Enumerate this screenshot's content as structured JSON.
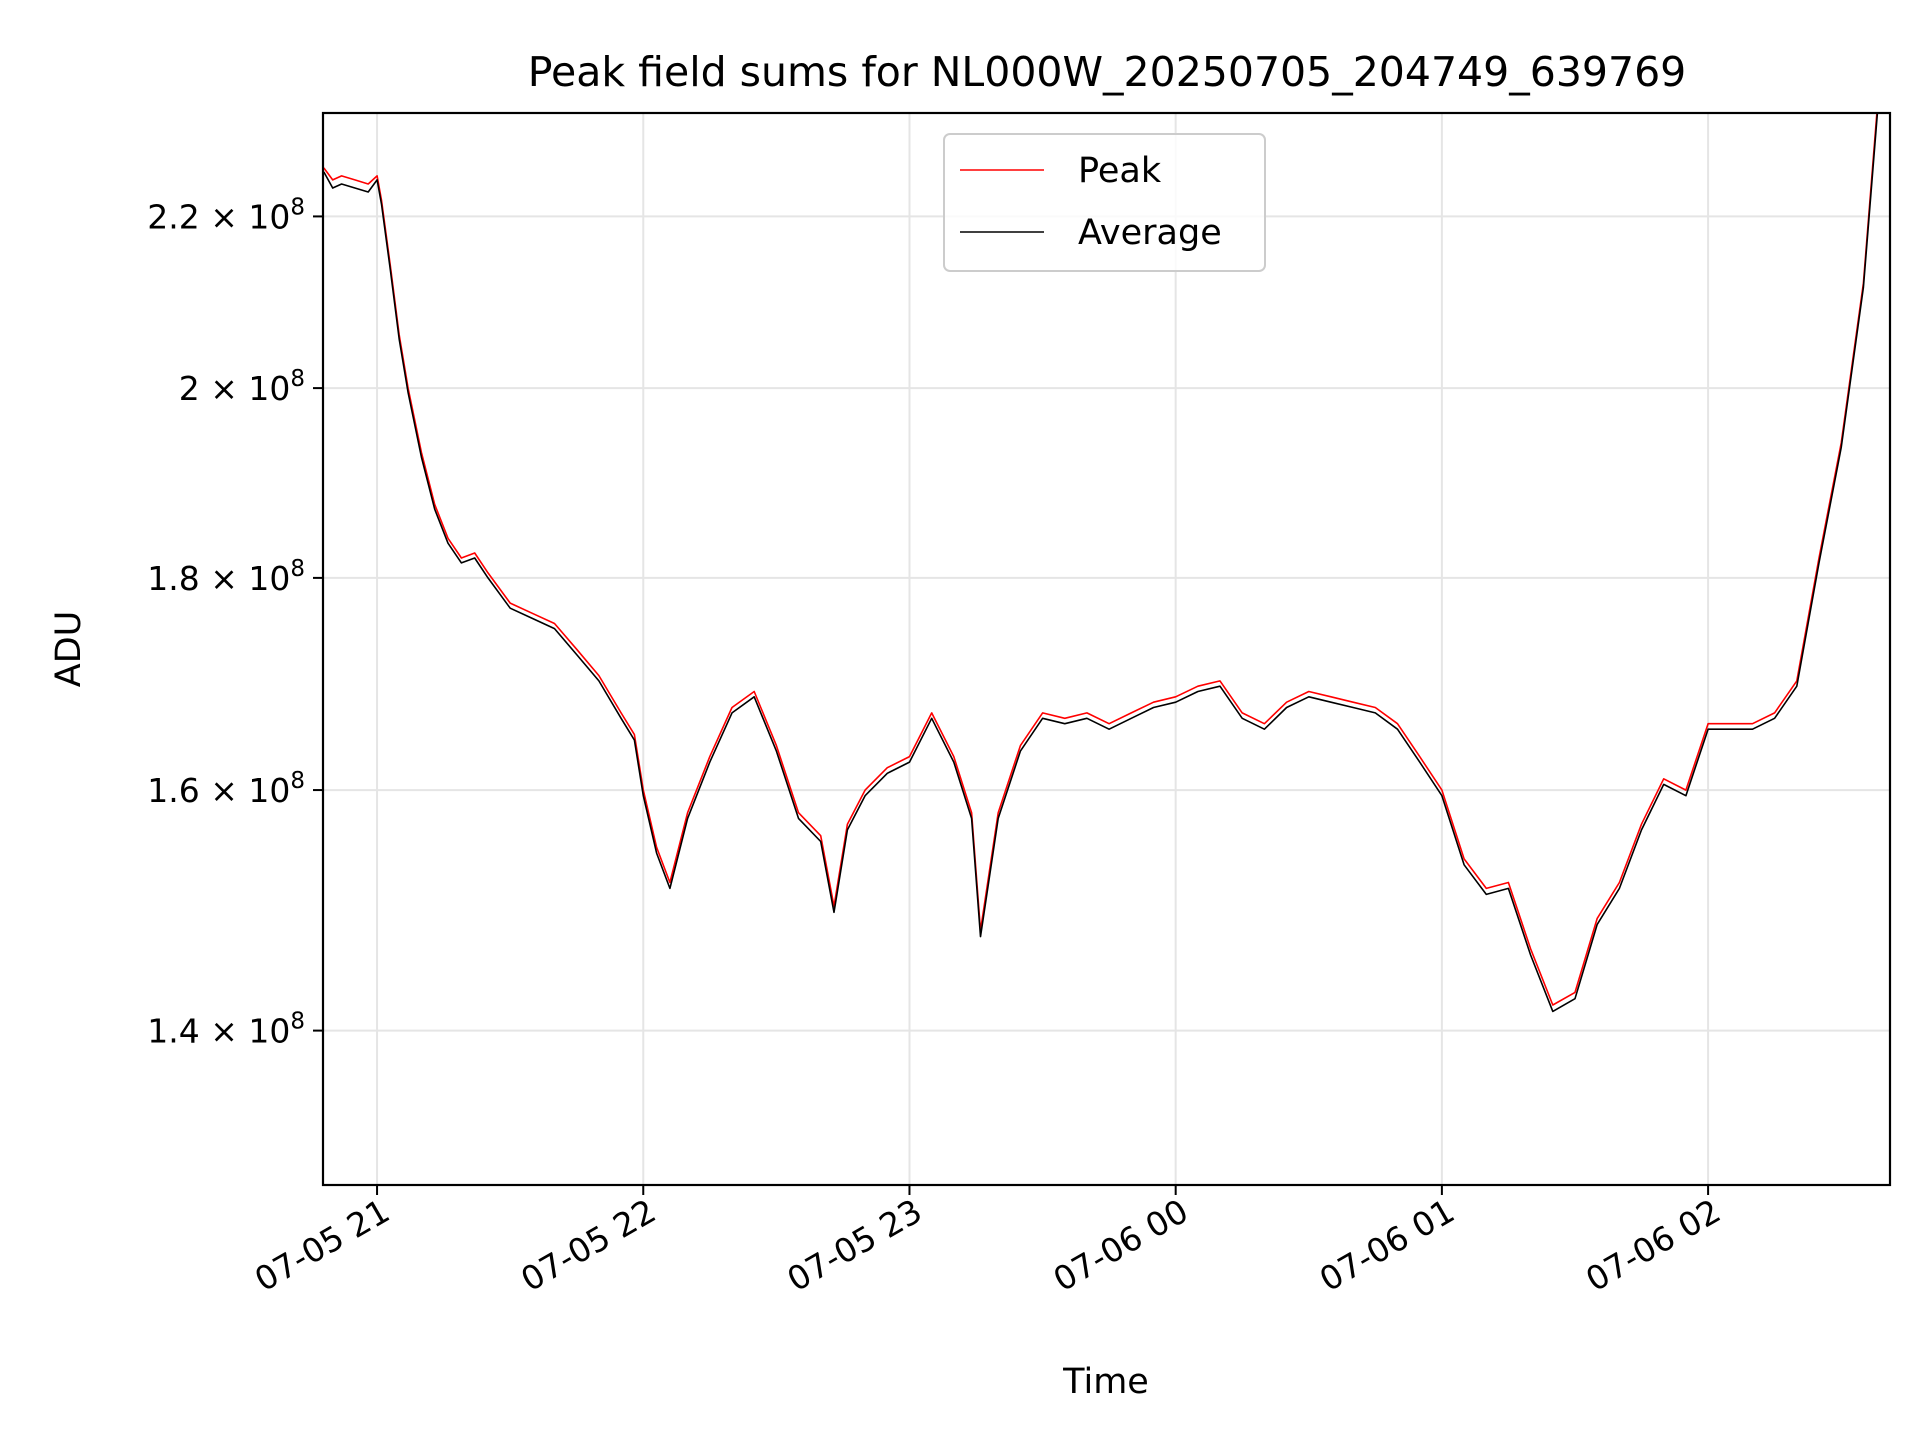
{
  "chart_data": {
    "type": "line",
    "title": "Peak field sums for NL000W_20250705_204749_639769",
    "xlabel": "Time",
    "ylabel": "ADU",
    "x_scale": "time",
    "y_scale": "log",
    "xlim": [
      "2025-07-05 20:47:49",
      "2025-07-06 02:41:00"
    ],
    "ylim": [
      128500000,
      233000000
    ],
    "grid": true,
    "legend_placement": "upper center",
    "x_ticks": [
      {
        "label": "07-05 21",
        "value": "2025-07-05 21:00"
      },
      {
        "label": "07-05 22",
        "value": "2025-07-05 22:00"
      },
      {
        "label": "07-05 23",
        "value": "2025-07-05 23:00"
      },
      {
        "label": "07-06 00",
        "value": "2025-07-06 00:00"
      },
      {
        "label": "07-06 01",
        "value": "2025-07-06 01:00"
      },
      {
        "label": "07-06 02",
        "value": "2025-07-06 02:00"
      }
    ],
    "y_ticks": [
      {
        "mantissa": "1.4",
        "value": 140000000
      },
      {
        "mantissa": "1.6",
        "value": 160000000
      },
      {
        "mantissa": "1.8",
        "value": 180000000
      },
      {
        "mantissa": "2",
        "value": 200000000
      },
      {
        "mantissa": "2.2",
        "value": 220000000
      }
    ],
    "y_tick_multiplier": "× 10",
    "y_tick_exponent": "8",
    "series": [
      {
        "name": "Peak",
        "color": "#ff0000",
        "x": [
          "2025-07-05 20:48",
          "2025-07-05 20:50",
          "2025-07-05 20:52",
          "2025-07-05 20:55",
          "2025-07-05 20:58",
          "2025-07-05 21:00",
          "2025-07-05 21:01",
          "2025-07-05 21:03",
          "2025-07-05 21:05",
          "2025-07-05 21:07",
          "2025-07-05 21:10",
          "2025-07-05 21:13",
          "2025-07-05 21:16",
          "2025-07-05 21:19",
          "2025-07-05 21:22",
          "2025-07-05 21:25",
          "2025-07-05 21:30",
          "2025-07-05 21:35",
          "2025-07-05 21:40",
          "2025-07-05 21:45",
          "2025-07-05 21:50",
          "2025-07-05 21:55",
          "2025-07-05 21:58",
          "2025-07-05 22:00",
          "2025-07-05 22:03",
          "2025-07-05 22:06",
          "2025-07-05 22:10",
          "2025-07-05 22:15",
          "2025-07-05 22:20",
          "2025-07-05 22:25",
          "2025-07-05 22:30",
          "2025-07-05 22:35",
          "2025-07-05 22:40",
          "2025-07-05 22:43",
          "2025-07-05 22:46",
          "2025-07-05 22:50",
          "2025-07-05 22:55",
          "2025-07-05 23:00",
          "2025-07-05 23:05",
          "2025-07-05 23:10",
          "2025-07-05 23:14",
          "2025-07-05 23:16",
          "2025-07-05 23:20",
          "2025-07-05 23:25",
          "2025-07-05 23:30",
          "2025-07-05 23:35",
          "2025-07-05 23:40",
          "2025-07-05 23:45",
          "2025-07-05 23:50",
          "2025-07-05 23:55",
          "2025-07-06 00:00",
          "2025-07-06 00:05",
          "2025-07-06 00:10",
          "2025-07-06 00:15",
          "2025-07-06 00:20",
          "2025-07-06 00:25",
          "2025-07-06 00:30",
          "2025-07-06 00:35",
          "2025-07-06 00:40",
          "2025-07-06 00:45",
          "2025-07-06 00:50",
          "2025-07-06 00:55",
          "2025-07-06 01:00",
          "2025-07-06 01:05",
          "2025-07-06 01:10",
          "2025-07-06 01:15",
          "2025-07-06 01:20",
          "2025-07-06 01:25",
          "2025-07-06 01:30",
          "2025-07-06 01:35",
          "2025-07-06 01:40",
          "2025-07-06 01:45",
          "2025-07-06 01:50",
          "2025-07-06 01:55",
          "2025-07-06 02:00",
          "2025-07-06 02:05",
          "2025-07-06 02:10",
          "2025-07-06 02:15",
          "2025-07-06 02:20",
          "2025-07-06 02:25",
          "2025-07-06 02:30",
          "2025-07-06 02:35",
          "2025-07-06 02:39"
        ],
        "values": [
          226000000,
          224500000,
          225000000,
          224500000,
          224000000,
          225000000,
          222000000,
          214000000,
          206000000,
          200000000,
          193000000,
          187500000,
          184000000,
          182000000,
          182500000,
          180500000,
          177500000,
          176500000,
          175500000,
          173000000,
          170500000,
          167000000,
          165000000,
          160000000,
          155000000,
          152000000,
          158000000,
          163000000,
          167500000,
          169000000,
          164000000,
          158000000,
          156000000,
          150000000,
          157000000,
          160000000,
          162000000,
          163000000,
          167000000,
          163000000,
          158000000,
          148000000,
          158000000,
          164000000,
          167000000,
          166500000,
          167000000,
          166000000,
          167000000,
          168000000,
          168500000,
          169500000,
          170000000,
          167000000,
          166000000,
          168000000,
          169000000,
          168500000,
          168000000,
          167500000,
          166000000,
          163000000,
          160000000,
          154000000,
          151500000,
          152000000,
          146500000,
          142000000,
          143000000,
          149000000,
          152000000,
          157000000,
          161000000,
          160000000,
          166000000,
          166000000,
          166000000,
          167000000,
          170000000,
          182000000,
          194000000,
          212000000,
          240000000
        ]
      },
      {
        "name": "Average",
        "color": "#000000",
        "x": [
          "2025-07-05 20:48",
          "2025-07-05 20:50",
          "2025-07-05 20:52",
          "2025-07-05 20:55",
          "2025-07-05 20:58",
          "2025-07-05 21:00",
          "2025-07-05 21:01",
          "2025-07-05 21:03",
          "2025-07-05 21:05",
          "2025-07-05 21:07",
          "2025-07-05 21:10",
          "2025-07-05 21:13",
          "2025-07-05 21:16",
          "2025-07-05 21:19",
          "2025-07-05 21:22",
          "2025-07-05 21:25",
          "2025-07-05 21:30",
          "2025-07-05 21:35",
          "2025-07-05 21:40",
          "2025-07-05 21:45",
          "2025-07-05 21:50",
          "2025-07-05 21:55",
          "2025-07-05 21:58",
          "2025-07-05 22:00",
          "2025-07-05 22:03",
          "2025-07-05 22:06",
          "2025-07-05 22:10",
          "2025-07-05 22:15",
          "2025-07-05 22:20",
          "2025-07-05 22:25",
          "2025-07-05 22:30",
          "2025-07-05 22:35",
          "2025-07-05 22:40",
          "2025-07-05 22:43",
          "2025-07-05 22:46",
          "2025-07-05 22:50",
          "2025-07-05 22:55",
          "2025-07-05 23:00",
          "2025-07-05 23:05",
          "2025-07-05 23:10",
          "2025-07-05 23:14",
          "2025-07-05 23:16",
          "2025-07-05 23:20",
          "2025-07-05 23:25",
          "2025-07-05 23:30",
          "2025-07-05 23:35",
          "2025-07-05 23:40",
          "2025-07-05 23:45",
          "2025-07-05 23:50",
          "2025-07-05 23:55",
          "2025-07-06 00:00",
          "2025-07-06 00:05",
          "2025-07-06 00:10",
          "2025-07-06 00:15",
          "2025-07-06 00:20",
          "2025-07-06 00:25",
          "2025-07-06 00:30",
          "2025-07-06 00:35",
          "2025-07-06 00:40",
          "2025-07-06 00:45",
          "2025-07-06 00:50",
          "2025-07-06 00:55",
          "2025-07-06 01:00",
          "2025-07-06 01:05",
          "2025-07-06 01:10",
          "2025-07-06 01:15",
          "2025-07-06 01:20",
          "2025-07-06 01:25",
          "2025-07-06 01:30",
          "2025-07-06 01:35",
          "2025-07-06 01:40",
          "2025-07-06 01:45",
          "2025-07-06 01:50",
          "2025-07-06 01:55",
          "2025-07-06 02:00",
          "2025-07-06 02:05",
          "2025-07-06 02:10",
          "2025-07-06 02:15",
          "2025-07-06 02:20",
          "2025-07-06 02:25",
          "2025-07-06 02:30",
          "2025-07-06 02:35",
          "2025-07-06 02:39"
        ],
        "values": [
          225500000,
          223500000,
          224000000,
          223500000,
          223000000,
          224500000,
          221500000,
          213500000,
          205500000,
          199500000,
          192500000,
          187000000,
          183500000,
          181500000,
          182000000,
          180000000,
          177000000,
          176000000,
          175000000,
          172500000,
          170000000,
          166500000,
          164500000,
          159500000,
          154500000,
          151500000,
          157500000,
          162500000,
          167000000,
          168500000,
          163500000,
          157500000,
          155500000,
          149500000,
          156500000,
          159500000,
          161500000,
          162500000,
          166500000,
          162500000,
          157500000,
          147500000,
          157500000,
          163500000,
          166500000,
          166000000,
          166500000,
          165500000,
          166500000,
          167500000,
          168000000,
          169000000,
          169500000,
          166500000,
          165500000,
          167500000,
          168500000,
          168000000,
          167500000,
          167000000,
          165500000,
          162500000,
          159500000,
          153500000,
          151000000,
          151500000,
          146000000,
          141500000,
          142500000,
          148500000,
          151500000,
          156500000,
          160500000,
          159500000,
          165500000,
          165500000,
          165500000,
          166500000,
          169500000,
          181500000,
          193500000,
          211500000,
          239000000
        ]
      }
    ]
  }
}
